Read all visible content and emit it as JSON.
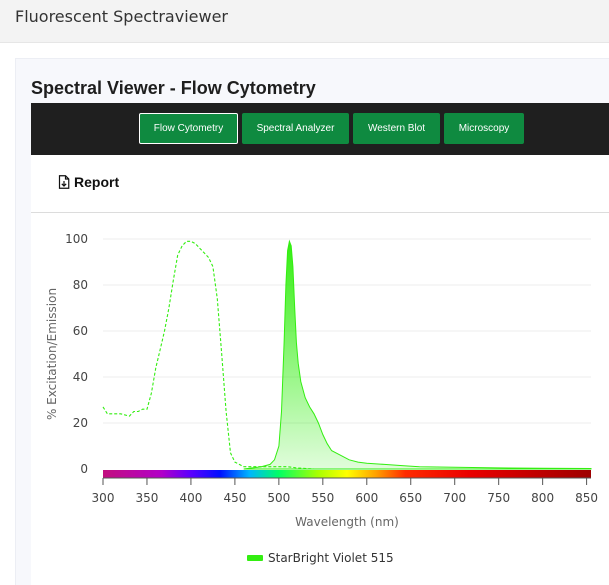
{
  "app": {
    "title": "Fluorescent Spectraviewer"
  },
  "panel": {
    "title": "Spectral Viewer - Flow Cytometry",
    "tabs": [
      {
        "label": "Flow Cytometry",
        "active": true
      },
      {
        "label": "Spectral Analyzer",
        "active": false
      },
      {
        "label": "Western Blot",
        "active": false
      },
      {
        "label": "Microscopy",
        "active": false
      }
    ],
    "report_label": "Report"
  },
  "colors": {
    "tab_green": "#0f8a40",
    "tabbar_bg": "#1f1f1f",
    "series_green": "#33ee11"
  },
  "icons": {
    "report": "document-icon",
    "legend": "legend-swatch"
  },
  "chart_data": {
    "type": "line",
    "title": "",
    "xlabel": "Wavelength (nm)",
    "ylabel": "% Excitation/Emission",
    "xlim": [
      300,
      855
    ],
    "ylim": [
      0,
      100
    ],
    "x_ticks": [
      300,
      350,
      400,
      450,
      500,
      550,
      600,
      650,
      700,
      750,
      800,
      850
    ],
    "y_ticks": [
      0,
      20,
      40,
      60,
      80,
      100
    ],
    "grid": true,
    "legend_position": "bottom-center",
    "wavelength_color_bar": true,
    "series": [
      {
        "name": "StarBright Violet 515",
        "kind": "excitation",
        "style": "dashed",
        "color": "#33ee11",
        "x": [
          300,
          305,
          310,
          320,
          330,
          335,
          340,
          345,
          350,
          355,
          360,
          365,
          370,
          375,
          380,
          385,
          390,
          395,
          400,
          405,
          410,
          415,
          420,
          425,
          430,
          435,
          440,
          445,
          450,
          455,
          460,
          470,
          480,
          490,
          500,
          510,
          520,
          540,
          560,
          600,
          700,
          855
        ],
        "y": [
          27,
          24,
          24,
          24,
          23,
          25,
          25,
          26,
          26,
          33,
          44,
          52,
          60,
          70,
          82,
          93,
          97,
          99,
          99,
          98,
          96,
          94,
          92,
          88,
          74,
          50,
          25,
          7,
          3,
          2,
          1,
          1,
          1,
          1,
          1,
          1,
          0.5,
          0,
          0,
          0,
          0,
          0
        ]
      },
      {
        "name": "StarBright Violet 515",
        "kind": "emission",
        "style": "filled",
        "color": "#33ee11",
        "x": [
          460,
          470,
          480,
          490,
          495,
          500,
          503,
          506,
          508,
          510,
          512,
          514,
          516,
          518,
          520,
          522,
          525,
          530,
          535,
          540,
          545,
          550,
          555,
          560,
          570,
          580,
          590,
          600,
          620,
          640,
          660,
          700,
          750,
          800,
          855
        ],
        "y": [
          0,
          0.5,
          1,
          2,
          4,
          10,
          25,
          55,
          80,
          95,
          99,
          97,
          88,
          70,
          55,
          46,
          38,
          31,
          27,
          24,
          20,
          15,
          11,
          8,
          6,
          4,
          3,
          2.5,
          2,
          1.5,
          1,
          0.8,
          0.5,
          0.3,
          0.2
        ]
      }
    ]
  }
}
